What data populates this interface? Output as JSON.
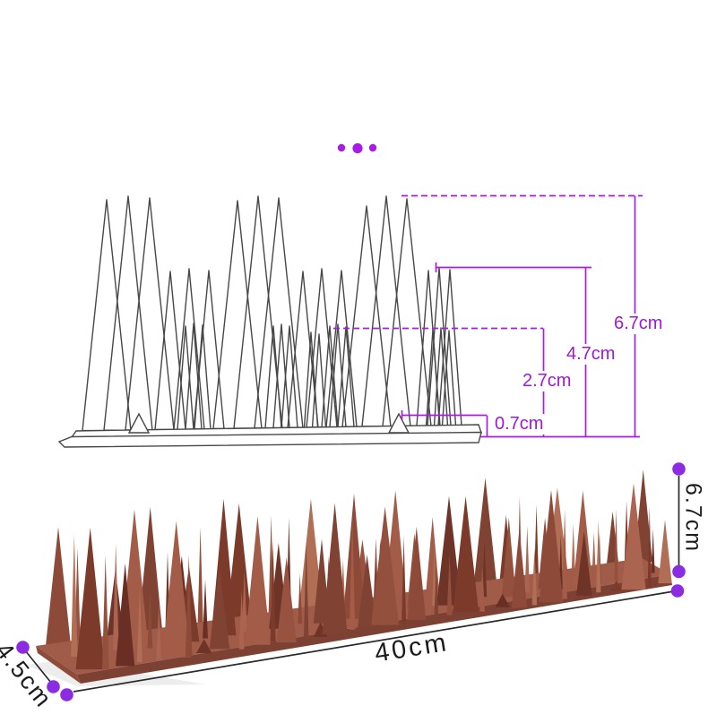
{
  "colors": {
    "dimension_line": "#a81ce6",
    "dimension_text": "#a018dd",
    "marker_dot": "#8b2be2",
    "lineart_stroke": "#474747",
    "photo_line": "#2a2a2a",
    "plate_top": "#a05c48",
    "plate_front": "#7c4133",
    "plate_side": "#8d4c3b",
    "photo_palette": [
      "#8e4a39",
      "#7c3a2b",
      "#a25c47",
      "#6f3428",
      "#985240",
      "#aa6450",
      "#7f4233",
      "#b06e55",
      "#6a2f24",
      "#93503c"
    ]
  },
  "schematic": {
    "height_labels": [
      {
        "label": "0.7cm"
      },
      {
        "label": "2.7cm"
      },
      {
        "label": "4.7cm"
      },
      {
        "label": "6.7cm"
      }
    ]
  },
  "photo": {
    "length_label": "40cm",
    "height_label": "6.7cm",
    "width_label": "4.5cm"
  }
}
